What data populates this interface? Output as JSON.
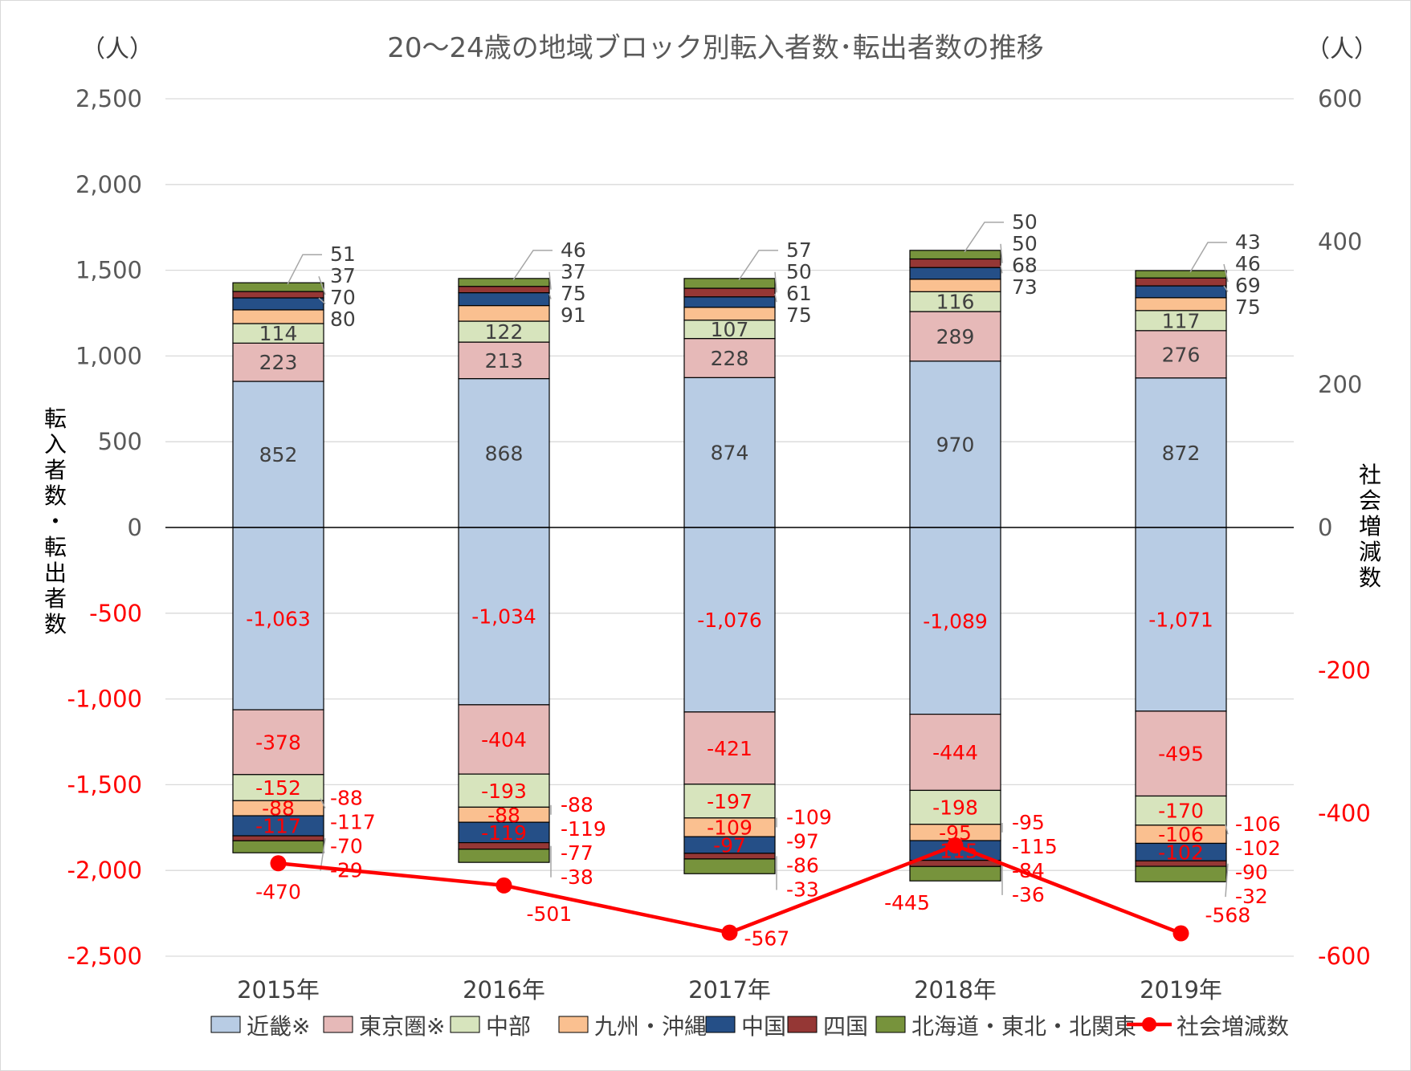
{
  "chart_data": {
    "type": "bar",
    "subtype": "stacked-bar-with-line-secondary-axis",
    "title": "20～24歳の地域ブロック別転入者数･転出者数の推移",
    "unit_left": "（人）",
    "unit_right": "（人）",
    "ylabel": "転入者数・転出者数",
    "y2label": "社会増減数",
    "categories": [
      "2015年",
      "2016年",
      "2017年",
      "2018年",
      "2019年"
    ],
    "ylim": [
      -2500,
      2500
    ],
    "ytick_step": 500,
    "ytick_labels": [
      "2,500",
      "2,000",
      "1,500",
      "1,000",
      "500",
      "0",
      "-500",
      "-1,000",
      "-1,500",
      "-2,000",
      "-2,500"
    ],
    "y2lim": [
      -600,
      600
    ],
    "y2tick_labels": [
      "600",
      "400",
      "200",
      "0",
      "-200",
      "-400",
      "-600"
    ],
    "grid": true,
    "legend_position": "bottom",
    "series": [
      {
        "name": "近畿※",
        "color": "#b8cce4",
        "in": [
          852,
          868,
          874,
          970,
          872
        ],
        "out": [
          -1063,
          -1034,
          -1076,
          -1089,
          -1071
        ],
        "in_labels": [
          "852",
          "868",
          "874",
          "970",
          "872"
        ],
        "out_labels": [
          "-1,063",
          "-1,034",
          "-1,076",
          "-1,089",
          "-1,071"
        ]
      },
      {
        "name": "東京圏※",
        "color": "#e6b9b8",
        "in": [
          223,
          213,
          228,
          289,
          276
        ],
        "out": [
          -378,
          -404,
          -421,
          -444,
          -495
        ],
        "in_labels": [
          "223",
          "213",
          "228",
          "289",
          "276"
        ],
        "out_labels": [
          "-378",
          "-404",
          "-421",
          "-444",
          "-495"
        ]
      },
      {
        "name": "中部",
        "color": "#d7e4bd",
        "in": [
          114,
          122,
          107,
          116,
          117
        ],
        "out": [
          -152,
          -193,
          -197,
          -198,
          -170
        ],
        "in_labels": [
          "114",
          "122",
          "107",
          "116",
          "117"
        ],
        "out_labels": [
          "-152",
          "-193",
          "-197",
          "-198",
          "-170"
        ]
      },
      {
        "name": "九州・沖縄",
        "color": "#fac090",
        "in": [
          80,
          91,
          75,
          73,
          75
        ],
        "out": [
          -88,
          -88,
          -109,
          -95,
          -106
        ],
        "in_labels": [
          "80",
          "91",
          "75",
          "73",
          "75"
        ],
        "out_labels": [
          "-88",
          "-88",
          "-109",
          "-95",
          "-106"
        ]
      },
      {
        "name": "中国",
        "color": "#254f87",
        "in": [
          70,
          75,
          61,
          68,
          69
        ],
        "out": [
          -117,
          -119,
          -97,
          -115,
          -102
        ],
        "in_labels": [
          "70",
          "75",
          "61",
          "68",
          "69"
        ],
        "out_labels": [
          "-117",
          "-119",
          "-97",
          "-115",
          "-102"
        ]
      },
      {
        "name": "四国",
        "color": "#953735",
        "in": [
          37,
          37,
          50,
          50,
          46
        ],
        "out": [
          -29,
          -38,
          -33,
          -36,
          -32
        ],
        "in_labels": [
          "37",
          "37",
          "50",
          "50",
          "46"
        ],
        "out_labels": [
          "-29",
          "-38",
          "-33",
          "-36",
          "-32"
        ]
      },
      {
        "name": "北海道・東北・北関東",
        "color": "#77933c",
        "in": [
          51,
          46,
          57,
          50,
          43
        ],
        "out": [
          -70,
          -77,
          -86,
          -84,
          -90
        ],
        "in_labels": [
          "51",
          "46",
          "57",
          "50",
          "43"
        ],
        "out_labels": [
          "-70",
          "-77",
          "-86",
          "-84",
          "-90"
        ]
      }
    ],
    "line": {
      "name": "社会増減数",
      "color": "#ff0000",
      "values": [
        -470,
        -501,
        -567,
        -445,
        -568
      ],
      "labels": [
        "-470",
        "-501",
        "-567",
        "-445",
        "-568"
      ]
    }
  }
}
